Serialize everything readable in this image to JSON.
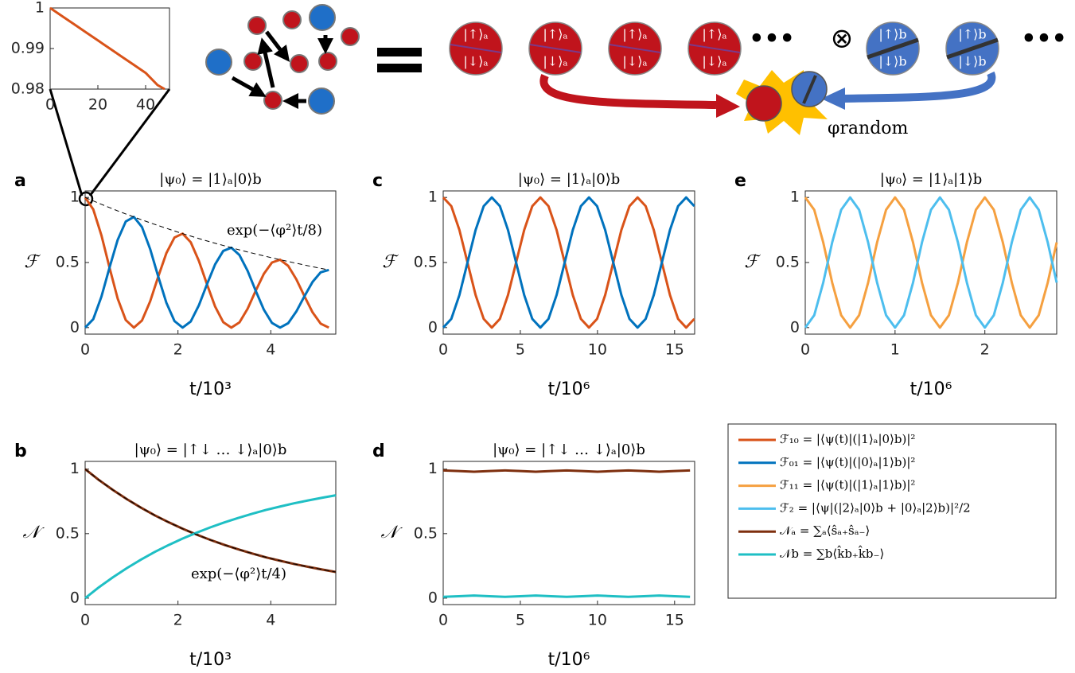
{
  "chart_data": [
    {
      "type": "line",
      "xlim": [
        0,
        50
      ],
      "ylim": [
        0.98,
        1
      ],
      "xticks": [
        0,
        20,
        40
      ],
      "yticks": [
        0.98,
        0.99,
        1
      ],
      "x": [
        0,
        5,
        10,
        15,
        20,
        25,
        30,
        35,
        40,
        45,
        48
      ],
      "series": [
        {
          "color": "#D95319",
          "values": [
            1,
            0.998,
            0.996,
            0.994,
            0.992,
            0.99,
            0.988,
            0.986,
            0.984,
            0.981,
            0.98
          ]
        }
      ]
    },
    {
      "type": "line",
      "panel": "a",
      "title": "|ψ₀⟩ = |1⟩ₐ|0⟩b",
      "xlabel": "t/10³",
      "ylabel": "ℱ",
      "annotation": "exp(−⟨φ²⟩t/8)",
      "xlim": [
        0,
        5.4
      ],
      "ylim": [
        -0.05,
        1.05
      ],
      "xticks": [
        0,
        2,
        4
      ],
      "yticks": [
        0,
        0.5,
        1
      ],
      "x": [
        0,
        0.175,
        0.35,
        0.525,
        0.7,
        0.875,
        1.05,
        1.225,
        1.4,
        1.575,
        1.75,
        1.925,
        2.1,
        2.275,
        2.45,
        2.625,
        2.8,
        2.975,
        3.15,
        3.325,
        3.5,
        3.675,
        3.85,
        4.025,
        4.2,
        4.375,
        4.55,
        4.725,
        4.9,
        5.075,
        5.25
      ],
      "series": [
        {
          "color": "#D95319",
          "values": [
            1,
            0.908,
            0.71,
            0.461,
            0.224,
            0.058,
            0,
            0.055,
            0.201,
            0.392,
            0.572,
            0.692,
            0.722,
            0.656,
            0.513,
            0.333,
            0.162,
            0.042,
            0,
            0.04,
            0.145,
            0.283,
            0.413,
            0.5,
            0.522,
            0.474,
            0.371,
            0.241,
            0.117,
            0.03,
            0
          ]
        },
        {
          "color": "#0072BD",
          "values": [
            0,
            0.065,
            0.237,
            0.461,
            0.673,
            0.815,
            0.85,
            0.772,
            0.604,
            0.392,
            0.191,
            0.05,
            0,
            0.047,
            0.171,
            0.333,
            0.486,
            0.589,
            0.614,
            0.557,
            0.436,
            0.283,
            0.138,
            0.036,
            0,
            0.034,
            0.124,
            0.241,
            0.351,
            0.425,
            0.443
          ]
        },
        {
          "color": "#000000",
          "style": "dashed",
          "values": [
            1,
            0.973,
            0.947,
            0.922,
            0.897,
            0.873,
            0.85,
            0.827,
            0.805,
            0.784,
            0.763,
            0.742,
            0.722,
            0.703,
            0.684,
            0.666,
            0.648,
            0.631,
            0.614,
            0.597,
            0.581,
            0.566,
            0.551,
            0.536,
            0.522,
            0.508,
            0.494,
            0.481,
            0.468,
            0.455,
            0.443
          ]
        }
      ]
    },
    {
      "type": "line",
      "panel": "b",
      "title": "|ψ₀⟩ = |↑↓ … ↓⟩ₐ|0⟩b",
      "xlabel": "t/10³",
      "ylabel": "𝒩",
      "annotation": "exp(−⟨φ²⟩t/4)",
      "xlim": [
        0,
        5.4
      ],
      "ylim": [
        -0.05,
        1.06
      ],
      "xticks": [
        0,
        2,
        4
      ],
      "yticks": [
        0,
        0.5,
        1
      ],
      "x": [
        0,
        0.3,
        0.6,
        0.9,
        1.2,
        1.5,
        1.8,
        2.1,
        2.4,
        2.7,
        3.0,
        3.3,
        3.6,
        3.9,
        4.2,
        4.5,
        4.8,
        5.1,
        5.4
      ],
      "series": [
        {
          "color": "#7E2F0E",
          "values": [
            1,
            0.915,
            0.838,
            0.767,
            0.702,
            0.642,
            0.588,
            0.538,
            0.493,
            0.451,
            0.413,
            0.378,
            0.346,
            0.316,
            0.29,
            0.265,
            0.243,
            0.222,
            0.203
          ]
        },
        {
          "color": "#1FBFC4",
          "values": [
            0,
            0.085,
            0.162,
            0.233,
            0.298,
            0.358,
            0.412,
            0.462,
            0.507,
            0.549,
            0.587,
            0.622,
            0.654,
            0.684,
            0.71,
            0.735,
            0.757,
            0.778,
            0.797
          ]
        },
        {
          "color": "#000000",
          "style": "dashed",
          "values": [
            1,
            0.915,
            0.838,
            0.767,
            0.702,
            0.642,
            0.588,
            0.538,
            0.493,
            0.451,
            0.413,
            0.378,
            0.346,
            0.316,
            0.29,
            0.265,
            0.243,
            0.222,
            0.203
          ]
        }
      ]
    },
    {
      "type": "line",
      "panel": "c",
      "title": "|ψ₀⟩ = |1⟩ₐ|0⟩b",
      "xlabel": "t/10⁶",
      "ylabel": "ℱ",
      "xlim": [
        0,
        16.3
      ],
      "ylim": [
        -0.05,
        1.05
      ],
      "xticks": [
        0,
        5,
        10,
        15
      ],
      "yticks": [
        0,
        0.5,
        1
      ],
      "x": [
        0,
        0.525,
        1.05,
        1.575,
        2.1,
        2.625,
        3.15,
        3.675,
        4.2,
        4.725,
        5.25,
        5.775,
        6.3,
        6.825,
        7.35,
        7.875,
        8.4,
        8.925,
        9.45,
        9.975,
        10.5,
        11.025,
        11.55,
        12.075,
        12.6,
        13.125,
        13.65,
        14.175,
        14.7,
        15.225,
        15.75,
        16.275
      ],
      "series": [
        {
          "color": "#D95319",
          "values": [
            1,
            0.933,
            0.75,
            0.5,
            0.25,
            0.067,
            0,
            0.067,
            0.25,
            0.5,
            0.75,
            0.933,
            1,
            0.933,
            0.75,
            0.5,
            0.25,
            0.067,
            0,
            0.067,
            0.25,
            0.5,
            0.75,
            0.933,
            1,
            0.933,
            0.75,
            0.5,
            0.25,
            0.067,
            0,
            0.067
          ]
        },
        {
          "color": "#0072BD",
          "values": [
            0,
            0.067,
            0.25,
            0.5,
            0.75,
            0.933,
            1,
            0.933,
            0.75,
            0.5,
            0.25,
            0.067,
            0,
            0.067,
            0.25,
            0.5,
            0.75,
            0.933,
            1,
            0.933,
            0.75,
            0.5,
            0.25,
            0.067,
            0,
            0.067,
            0.25,
            0.5,
            0.75,
            0.933,
            1,
            0.933
          ]
        }
      ]
    },
    {
      "type": "line",
      "panel": "d",
      "title": "|ψ₀⟩ = |↑↓ … ↓⟩ₐ|0⟩b",
      "xlabel": "t/10⁶",
      "ylabel": "𝒩",
      "xlim": [
        0,
        16.3
      ],
      "ylim": [
        -0.05,
        1.06
      ],
      "xticks": [
        0,
        5,
        10,
        15
      ],
      "yticks": [
        0,
        0.5,
        1
      ],
      "x": [
        0,
        1,
        2,
        3,
        4,
        5,
        6,
        7,
        8,
        9,
        10,
        11,
        12,
        13,
        14,
        15,
        16
      ],
      "series": [
        {
          "color": "#7E2F0E",
          "values": [
            0.99,
            0.985,
            0.98,
            0.985,
            0.99,
            0.985,
            0.98,
            0.985,
            0.99,
            0.985,
            0.98,
            0.985,
            0.99,
            0.985,
            0.98,
            0.985,
            0.99
          ]
        },
        {
          "color": "#1FBFC4",
          "values": [
            0.01,
            0.015,
            0.02,
            0.015,
            0.01,
            0.015,
            0.02,
            0.015,
            0.01,
            0.015,
            0.02,
            0.015,
            0.01,
            0.015,
            0.02,
            0.015,
            0.01
          ]
        }
      ]
    },
    {
      "type": "line",
      "panel": "e",
      "title": "|ψ₀⟩ = |1⟩ₐ|1⟩b",
      "xlabel": "t/10⁶",
      "ylabel": "ℱ",
      "xlim": [
        0,
        2.8
      ],
      "ylim": [
        -0.05,
        1.05
      ],
      "xticks": [
        0,
        1,
        2
      ],
      "yticks": [
        0,
        0.5,
        1
      ],
      "x": [
        0,
        0.1,
        0.2,
        0.3,
        0.4,
        0.5,
        0.6,
        0.7,
        0.8,
        0.9,
        1,
        1.1,
        1.2,
        1.3,
        1.4,
        1.5,
        1.6,
        1.7,
        1.8,
        1.9,
        2,
        2.1,
        2.2,
        2.3,
        2.4,
        2.5,
        2.6,
        2.7,
        2.8
      ],
      "series": [
        {
          "color": "#F5A040",
          "values": [
            1,
            0.905,
            0.655,
            0.345,
            0.095,
            0,
            0.095,
            0.345,
            0.655,
            0.905,
            1,
            0.905,
            0.655,
            0.345,
            0.095,
            0,
            0.095,
            0.345,
            0.655,
            0.905,
            1,
            0.905,
            0.655,
            0.345,
            0.095,
            0,
            0.095,
            0.345,
            0.655
          ]
        },
        {
          "color": "#4DBEEE",
          "values": [
            0,
            0.095,
            0.345,
            0.655,
            0.905,
            1,
            0.905,
            0.655,
            0.345,
            0.095,
            0,
            0.095,
            0.345,
            0.655,
            0.905,
            1,
            0.905,
            0.655,
            0.345,
            0.095,
            0,
            0.095,
            0.345,
            0.655,
            0.905,
            1,
            0.905,
            0.655,
            0.345
          ]
        }
      ]
    }
  ],
  "legend": [
    {
      "name": "ℱ₁₀ = |⟨ψ(t)|(|1⟩ₐ|0⟩b)|²",
      "color": "#D95319"
    },
    {
      "name": "ℱ₀₁ = |⟨ψ(t)|(|0⟩ₐ|1⟩b)|²",
      "color": "#0072BD"
    },
    {
      "name": "ℱ₁₁ = |⟨ψ(t)|(|1⟩ₐ|1⟩b)|²",
      "color": "#F5A040"
    },
    {
      "name": "ℱ₂ = |⟨ψ|(|2⟩ₐ|0⟩b + |0⟩ₐ|2⟩b)|²/2",
      "color": "#4DBEEE"
    },
    {
      "name": "𝒩ₐ = ∑ₐ⟨ŝₐ₊ŝₐ₋⟩",
      "color": "#7E2F0E"
    },
    {
      "name": "𝒩b = ∑b⟨k̂b₊k̂b₋⟩",
      "color": "#1FBFC4"
    }
  ],
  "diagram": {
    "ket_a_up": "|↑⟩ₐ",
    "ket_a_down": "|↓⟩ₐ",
    "ket_b_up": "|↑⟩b",
    "ket_b_down": "|↓⟩b",
    "ellipsis": "•••",
    "tensor": "⊗",
    "phase": "φrandom"
  }
}
